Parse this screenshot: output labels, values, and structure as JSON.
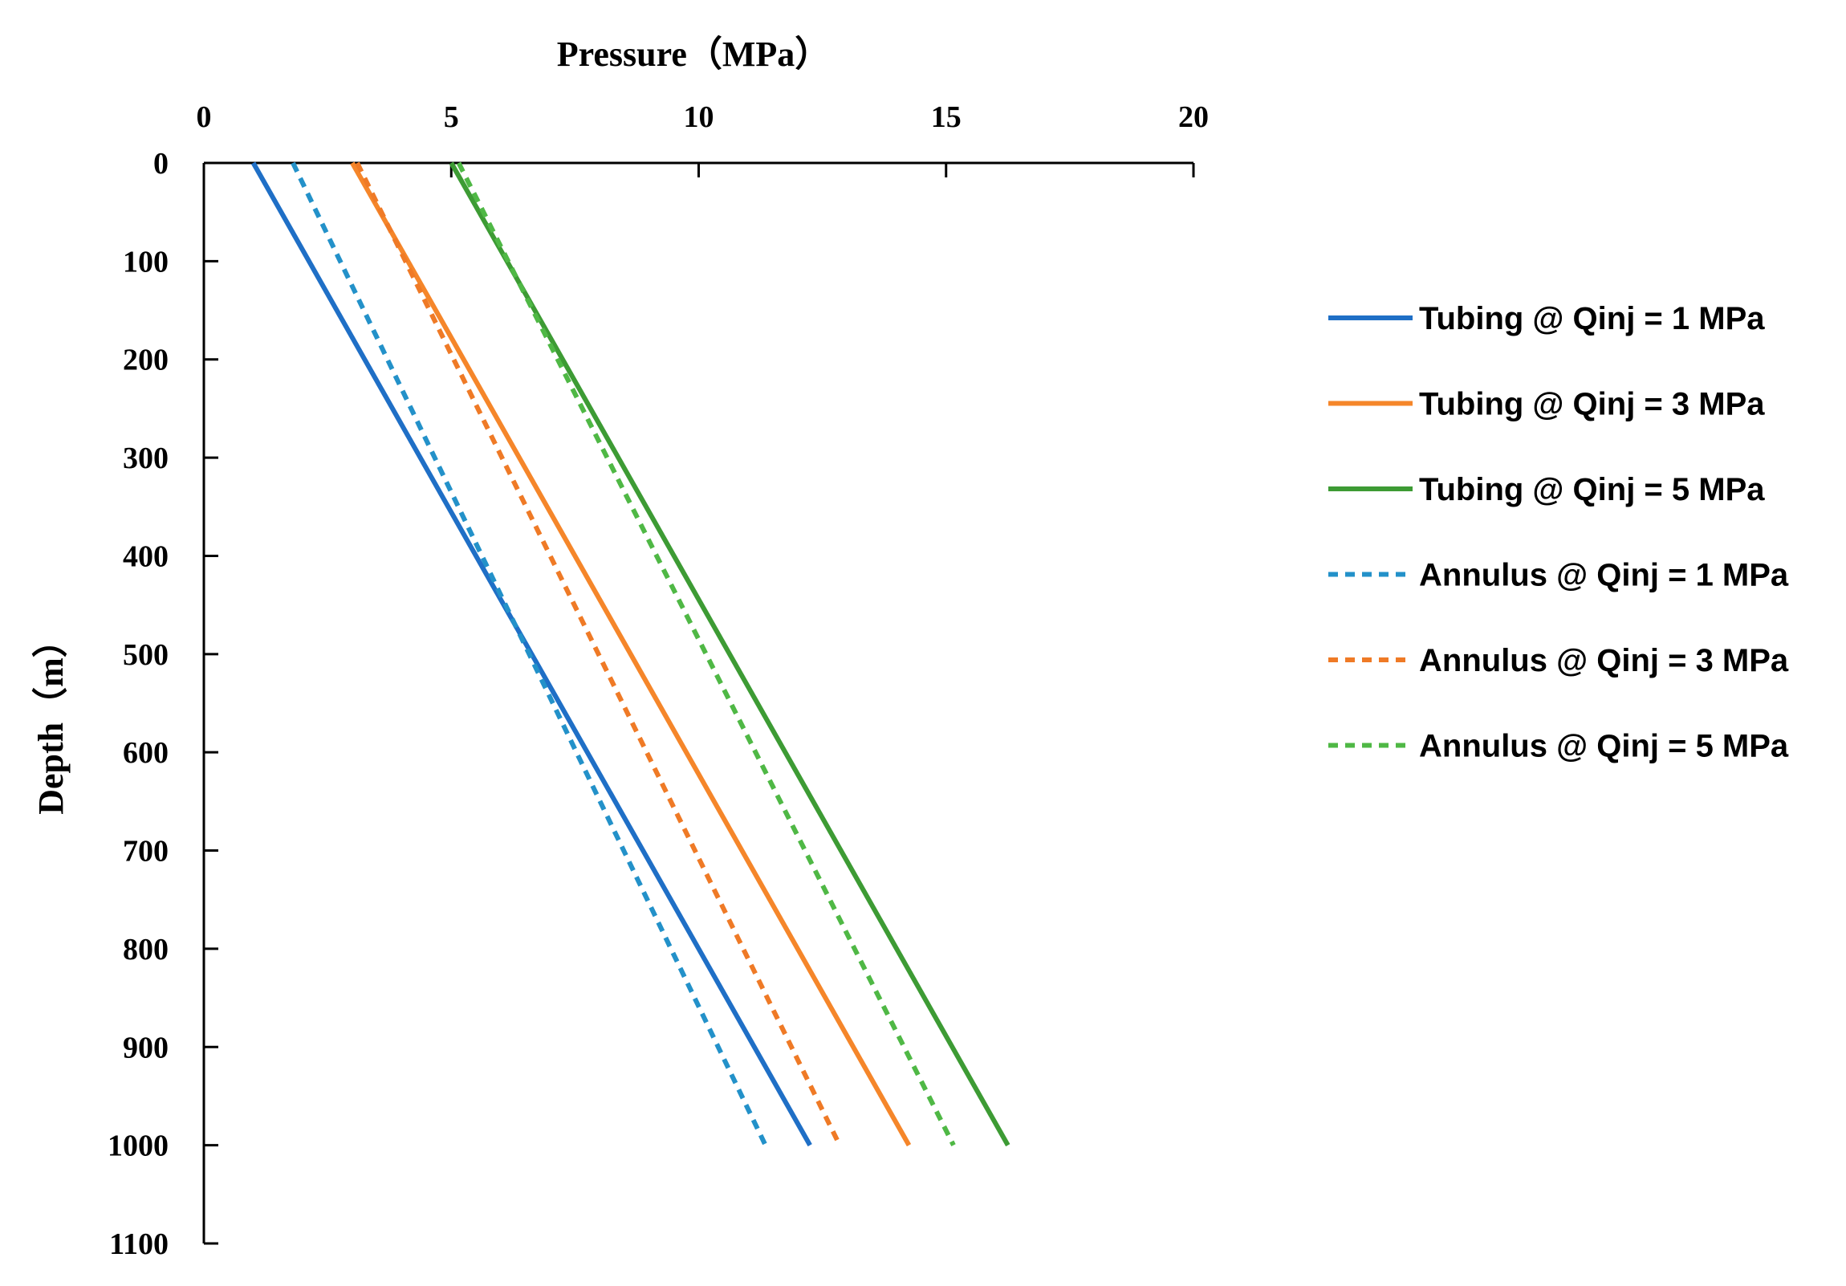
{
  "chart_data": {
    "type": "line",
    "title": "",
    "xlabel": "Pressure（MPa）",
    "ylabel": "Depth（m）",
    "xlim": [
      0,
      20
    ],
    "ylim": [
      0,
      1100
    ],
    "x_ticks": [
      "0",
      "5",
      "10",
      "15",
      "20"
    ],
    "y_ticks": [
      "0",
      "100",
      "200",
      "300",
      "400",
      "500",
      "600",
      "700",
      "800",
      "900",
      "1000",
      "1100"
    ],
    "x_axis_position": "top",
    "y_axis_inverted": true,
    "grid": false,
    "legend_position": "right",
    "series": [
      {
        "name": "Tubing @ Qinj = 1 MPa",
        "color": "#1f6fc6",
        "dash": "solid",
        "points": [
          [
            1.0,
            0
          ],
          [
            12.25,
            1000
          ]
        ]
      },
      {
        "name": "Tubing @ Qinj = 3 MPa",
        "color": "#f5862a",
        "dash": "solid",
        "points": [
          [
            3.0,
            0
          ],
          [
            14.25,
            1000
          ]
        ]
      },
      {
        "name": "Tubing @ Qinj = 5 MPa",
        "color": "#3d9b34",
        "dash": "solid",
        "points": [
          [
            5.0,
            0
          ],
          [
            16.25,
            1000
          ]
        ]
      },
      {
        "name": "Annulus @ Qinj = 1 MPa",
        "color": "#2391c9",
        "dash": "dashed",
        "points": [
          [
            1.8,
            0
          ],
          [
            11.35,
            1000
          ]
        ]
      },
      {
        "name": "Annulus @ Qinj = 3 MPa",
        "color": "#ef7a26",
        "dash": "dashed",
        "points": [
          [
            3.1,
            0
          ],
          [
            12.85,
            1000
          ]
        ]
      },
      {
        "name": "Annulus @ Qinj = 5 MPa",
        "color": "#4fb845",
        "dash": "dashed",
        "points": [
          [
            5.15,
            0
          ],
          [
            15.15,
            1000
          ]
        ]
      }
    ]
  }
}
